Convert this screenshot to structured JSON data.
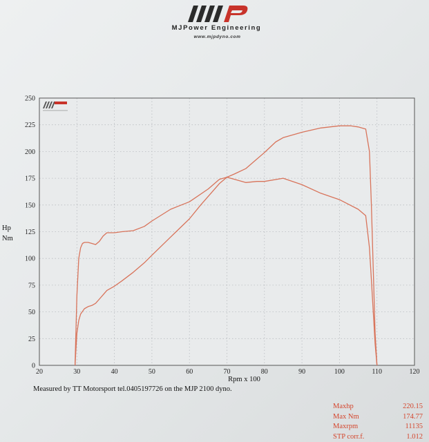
{
  "header": {
    "brand": "MJPower Engineering",
    "url": "www.mjpdyno.com"
  },
  "chart_data": {
    "type": "line",
    "xlabel": "Rpm x 100",
    "ylabel_lines": [
      "Hp",
      "Nm"
    ],
    "xlim": [
      20,
      120
    ],
    "ylim": [
      0,
      250
    ],
    "x_ticks": [
      20,
      30,
      40,
      50,
      60,
      70,
      80,
      90,
      100,
      110,
      120
    ],
    "y_ticks": [
      0,
      25,
      50,
      75,
      100,
      125,
      150,
      175,
      200,
      225,
      250
    ],
    "grid": true,
    "series": [
      {
        "x": [
          29.5,
          30,
          30.5,
          31,
          32,
          33,
          34,
          35,
          36,
          37,
          38,
          40,
          42,
          45,
          48,
          50,
          55,
          60,
          63,
          66,
          68,
          70,
          72,
          75,
          78,
          80,
          83,
          85,
          88,
          90,
          95,
          100,
          103,
          105,
          107,
          108,
          108.5,
          109,
          109.5,
          110
        ],
        "y": [
          0,
          30,
          42,
          48,
          53,
          55,
          56,
          58,
          62,
          66,
          70,
          74,
          79,
          87,
          96,
          103,
          120,
          137,
          150,
          162,
          170,
          176,
          179,
          184,
          193,
          199,
          209,
          213,
          216,
          218,
          222,
          224,
          224,
          223,
          221,
          200,
          150,
          90,
          30,
          0
        ]
      },
      {
        "x": [
          29.5,
          30,
          30.5,
          31,
          31.5,
          32,
          33,
          34,
          35,
          36,
          37,
          38,
          40,
          42,
          45,
          48,
          50,
          55,
          60,
          65,
          68,
          70,
          72,
          75,
          78,
          80,
          85,
          90,
          95,
          100,
          105,
          107,
          108,
          108.5,
          109,
          109.5,
          110
        ],
        "y": [
          0,
          65,
          100,
          110,
          114,
          115,
          115,
          114,
          113,
          116,
          121,
          124,
          124,
          125,
          126,
          130,
          135,
          146,
          153,
          165,
          174,
          176,
          174,
          171,
          172,
          172,
          175,
          169,
          161,
          155,
          146,
          140,
          110,
          80,
          50,
          20,
          0
        ]
      }
    ]
  },
  "footer": {
    "note": "Measured by TT Motorsport tel.0405197726 on the MJP 2100 dyno."
  },
  "summary": [
    {
      "label": "Maxhp",
      "value": "220.15"
    },
    {
      "label": "Max Nm",
      "value": "174.77"
    },
    {
      "label": "Maxrpm",
      "value": "11135"
    },
    {
      "label": "STP corr.f.",
      "value": "1.012"
    }
  ],
  "colors": {
    "curve": "#d8735a",
    "brand_red": "#c8332a",
    "grid": "#b9bcc0",
    "frame": "#555555",
    "summary_text": "#d4452c"
  }
}
